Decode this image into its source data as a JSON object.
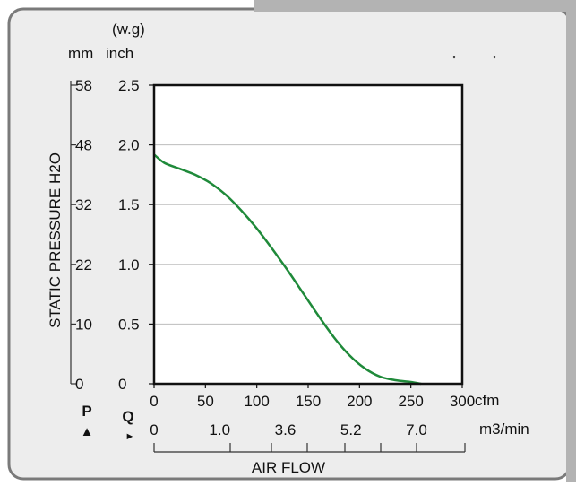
{
  "chart_data": {
    "type": "line",
    "title": "",
    "unit_top": "(w.g)",
    "unit_mm": "mm",
    "unit_inch": "inch",
    "ylabel": "STATIC PRESSURE H2O",
    "xlabel": "AIR FLOW",
    "x_unit": "cfm",
    "x2_unit": "m3/min",
    "p_label": "P",
    "q_label": "Q",
    "p_marker": "▲",
    "q_marker": "►",
    "xlim": [
      0,
      300
    ],
    "ylim": [
      0,
      2.5
    ],
    "x_ticks": [
      "0",
      "50",
      "100",
      "150",
      "200",
      "250",
      "300"
    ],
    "y_ticks": [
      "0",
      "0.5",
      "1.0",
      "1.5",
      "2.0",
      "2.5"
    ],
    "mm_ticks": [
      "0",
      "10",
      "22",
      "32",
      "48",
      "58"
    ],
    "m3_ticks": [
      "0",
      "1.0",
      "3.6",
      "5.2",
      "7.0"
    ],
    "grid": true,
    "line_color": "#1f8a3a",
    "series": [
      {
        "x": [
          0,
          10,
          25,
          40,
          55,
          70,
          85,
          100,
          115,
          130,
          145,
          160,
          175,
          190,
          205,
          220,
          235,
          250,
          260
        ],
        "values": [
          1.92,
          1.85,
          1.8,
          1.75,
          1.68,
          1.58,
          1.45,
          1.3,
          1.13,
          0.95,
          0.76,
          0.57,
          0.39,
          0.24,
          0.13,
          0.06,
          0.03,
          0.015,
          0.0
        ]
      }
    ]
  }
}
